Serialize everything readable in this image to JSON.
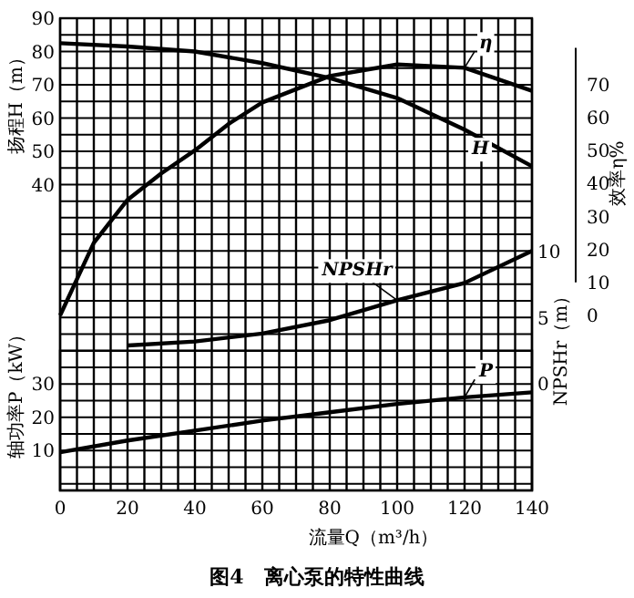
{
  "chart_data": [
    {
      "type": "line",
      "title": "图4　离心泵的特性曲线",
      "xlabel": "流量Q（m³/h）",
      "ylabel": "扬程H（m）",
      "y2label": "效率η%",
      "y3label": "NPSHr（m）",
      "xlim": [
        0,
        140
      ],
      "xticks": [
        0,
        20,
        40,
        60,
        80,
        100,
        120,
        140
      ],
      "ylim": [
        -52,
        90
      ],
      "yticks": [
        40,
        50,
        60,
        70,
        80,
        90
      ],
      "y2lim": [
        -53,
        90
      ],
      "y2ticks": [
        0,
        10,
        20,
        30,
        40,
        50,
        60,
        70
      ],
      "y3lim": [
        -8,
        27.5
      ],
      "y3ticks": [
        0,
        5,
        10
      ],
      "grid": true,
      "legend": false,
      "marker": "none",
      "line_style": "solid",
      "series": [
        {
          "name": "H",
          "color": "#000000",
          "x": [
            0,
            20,
            40,
            60,
            80,
            100,
            120,
            140
          ],
          "values": [
            82.5,
            81.5,
            80,
            76.5,
            72,
            66,
            56.5,
            45.5
          ]
        },
        {
          "name": "η",
          "color": "#000000",
          "axis": "y2",
          "x": [
            0,
            10,
            20,
            30,
            40,
            50,
            60,
            80,
            100,
            120,
            140
          ],
          "values": [
            0,
            22,
            35,
            43,
            50,
            58,
            64.5,
            72.5,
            76,
            75,
            68
          ]
        },
        {
          "name": "NPSHr",
          "color": "#000000",
          "axis": "y3",
          "x": [
            20,
            40,
            60,
            80,
            100,
            120,
            140
          ],
          "values": [
            2.9,
            3.2,
            3.8,
            4.8,
            6.3,
            7.6,
            10
          ]
        }
      ]
    },
    {
      "type": "line",
      "ylabel": "轴功率P（kW）",
      "xlim": [
        0,
        140
      ],
      "ylim": [
        -2,
        40
      ],
      "yticks": [
        10,
        20,
        30
      ],
      "tick_labels": "y",
      "legend": false,
      "marker": "none",
      "line_style": "solid",
      "series": [
        {
          "name": "P",
          "color": "#000000",
          "x": [
            0,
            20,
            40,
            60,
            80,
            100,
            120,
            140
          ],
          "values": [
            9.5,
            13,
            16,
            19,
            21.5,
            24,
            26,
            27.5
          ]
        }
      ]
    }
  ]
}
